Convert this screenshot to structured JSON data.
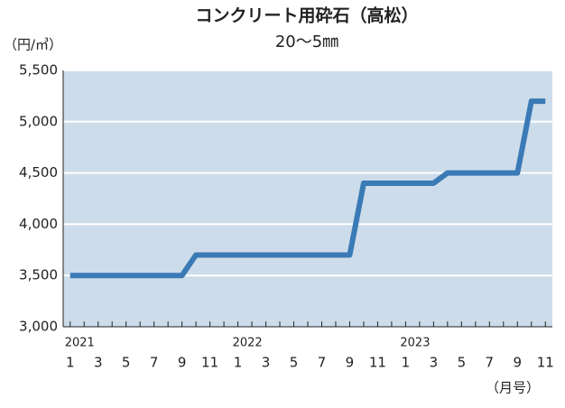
{
  "chart_data": {
    "type": "line",
    "title": "コンクリート用砕石（高松）",
    "subtitle": "20～5㎜",
    "y_label": "（円/㎥）",
    "x_label": "（月号）",
    "years": [
      "2021",
      "2022",
      "2023"
    ],
    "categories": [
      "1",
      null,
      "3",
      null,
      "5",
      null,
      "7",
      null,
      "9",
      null,
      "11",
      null,
      "1",
      null,
      "3",
      null,
      "5",
      null,
      "7",
      null,
      "9",
      null,
      "11",
      null,
      "1",
      null,
      "3",
      null,
      "5",
      null,
      "7",
      null,
      "9",
      null,
      "11"
    ],
    "series": [
      {
        "color": "#3a7ab6",
        "values": [
          3500,
          3500,
          3500,
          3500,
          3500,
          3500,
          3500,
          3500,
          3500,
          3700,
          3700,
          3700,
          3700,
          3700,
          3700,
          3700,
          3700,
          3700,
          3700,
          3700,
          3700,
          4400,
          4400,
          4400,
          4400,
          4400,
          4400,
          4500,
          4500,
          4500,
          4500,
          4500,
          4500,
          5200,
          5200
        ]
      }
    ],
    "ylim": [
      3000,
      5500
    ],
    "yticks": [
      {
        "value": 3000,
        "label": "3,000"
      },
      {
        "value": 3500,
        "label": "3,500"
      },
      {
        "value": 4000,
        "label": "4,000"
      },
      {
        "value": 4500,
        "label": "4,500"
      },
      {
        "value": 5000,
        "label": "5,000"
      },
      {
        "value": 5500,
        "label": "5,500"
      }
    ],
    "grid": true,
    "background": "#cddcea"
  }
}
